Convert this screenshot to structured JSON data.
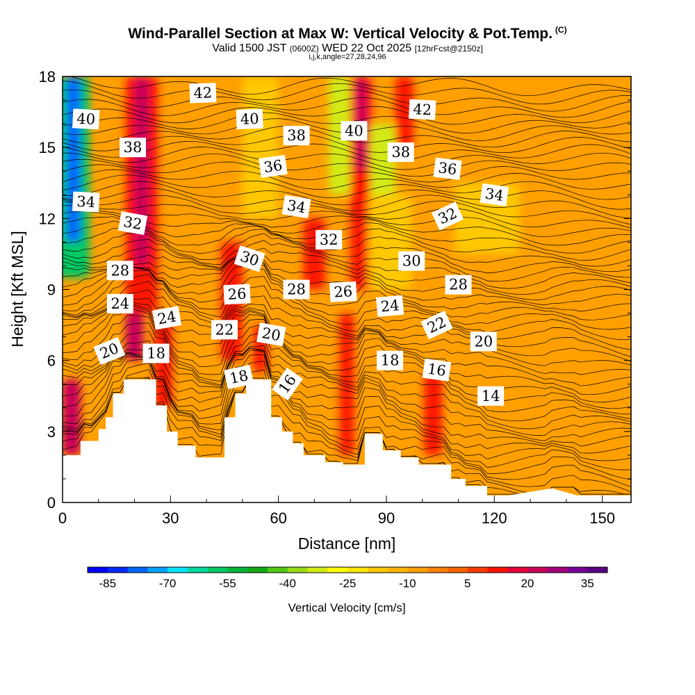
{
  "header": {
    "title": "Wind-Parallel Section at Max W: Vertical Velocity & Pot.Temp.",
    "title_tag": "(C)",
    "subtitle_a": "Valid 1500 JST ",
    "subtitle_b": "(0600Z)",
    "subtitle_c": " WED 22 Oct 2025 ",
    "subtitle_d": "[12hrFcst@2150z]",
    "subtitle2": "i,j,k,angle=27,28,24,96"
  },
  "colors": {
    "background_fill": "#ff9f00",
    "terrain": "#ffffff",
    "contour": "#000000"
  },
  "chart_data": {
    "type": "heatmap",
    "title": "Wind-Parallel Section at Max W: Vertical Velocity & Pot.Temp.",
    "xlabel": "Distance [nm]",
    "ylabel": "Height [Kft MSL]",
    "xlim": [
      0,
      158
    ],
    "ylim": [
      0,
      18
    ],
    "x_ticks": [
      "0",
      "30",
      "60",
      "90",
      "120",
      "150"
    ],
    "x_tick_values": [
      0,
      30,
      60,
      90,
      120,
      150
    ],
    "y_ticks": [
      "0",
      "3",
      "6",
      "9",
      "12",
      "15",
      "18"
    ],
    "y_tick_values": [
      0,
      3,
      6,
      9,
      12,
      15,
      18
    ],
    "colorbar": {
      "label": "Vertical Velocity [cm/s]",
      "tick_labels": [
        "-85",
        "-70",
        "-55",
        "-40",
        "-25",
        "-10",
        "5",
        "20",
        "35"
      ],
      "tick_values": [
        -85,
        -70,
        -55,
        -40,
        -25,
        -10,
        5,
        20,
        35
      ],
      "range": [
        -90,
        40
      ],
      "colors": [
        "#0000ff",
        "#0028ff",
        "#0064ff",
        "#00a0ff",
        "#00e4ff",
        "#00d8a0",
        "#00c864",
        "#00b43c",
        "#14aa14",
        "#50c814",
        "#96dc14",
        "#d2eb14",
        "#ffff00",
        "#ffe600",
        "#ffc800",
        "#ffb400",
        "#ff9f00",
        "#ff8200",
        "#ff6400",
        "#ff3c00",
        "#ff1400",
        "#e6003c",
        "#c8005a",
        "#a00078",
        "#780096",
        "#5a0082"
      ]
    },
    "terrain_profile": {
      "x": [
        0,
        5,
        5,
        10,
        10,
        12,
        12,
        14,
        14,
        17,
        17,
        26,
        26,
        29,
        29,
        32,
        32,
        37,
        37,
        45,
        45,
        48,
        48,
        51,
        51,
        58,
        58,
        61,
        61,
        64,
        64,
        67,
        67,
        73,
        73,
        78,
        78,
        84,
        84,
        89,
        89,
        94,
        94,
        99,
        99,
        108,
        108,
        112,
        112,
        118,
        118,
        124,
        124,
        136,
        136,
        143,
        143,
        158
      ],
      "y": [
        2.0,
        2.0,
        2.6,
        2.6,
        3.1,
        3.1,
        3.6,
        3.6,
        4.6,
        4.6,
        5.2,
        5.2,
        4.1,
        4.1,
        3.0,
        3.0,
        2.4,
        2.4,
        1.9,
        1.9,
        3.6,
        3.6,
        4.6,
        4.6,
        5.2,
        5.2,
        3.6,
        3.6,
        3.0,
        3.0,
        2.5,
        2.5,
        2.0,
        2.0,
        1.7,
        1.7,
        1.6,
        1.6,
        2.9,
        2.9,
        2.2,
        2.2,
        1.9,
        1.9,
        1.6,
        1.6,
        1.0,
        1.0,
        0.7,
        0.7,
        0.3,
        0.3,
        0.3,
        0.6,
        0.6,
        0.3,
        0.3,
        0.3
      ]
    },
    "w_field": [
      {
        "x": 3,
        "y0": 9.5,
        "y1": 18,
        "w": 9,
        "value": -60
      },
      {
        "x": 3,
        "y0": 11,
        "y1": 18,
        "w": 4,
        "value": -80
      },
      {
        "x": 2.5,
        "y0": 2,
        "y1": 5.2,
        "w": 5,
        "value": 20
      },
      {
        "x": 22,
        "y0": 8,
        "y1": 18,
        "w": 9,
        "value": 12
      },
      {
        "x": 22,
        "y0": 10,
        "y1": 18,
        "w": 4,
        "value": 20
      },
      {
        "x": 20,
        "y0": 6,
        "y1": 8,
        "w": 5,
        "value": 20
      },
      {
        "x": 28,
        "y0": 4,
        "y1": 8,
        "w": 5,
        "value": 12
      },
      {
        "x": 47,
        "y0": 6,
        "y1": 11,
        "w": 6,
        "value": 12
      },
      {
        "x": 55,
        "y0": 12,
        "y1": 18,
        "w": 10,
        "value": -18
      },
      {
        "x": 55,
        "y0": 5.5,
        "y1": 7.5,
        "w": 4,
        "value": 12
      },
      {
        "x": 70,
        "y0": 9,
        "y1": 12,
        "w": 6,
        "value": 12
      },
      {
        "x": 77,
        "y0": 13,
        "y1": 18,
        "w": 6,
        "value": -32
      },
      {
        "x": 79,
        "y0": 2,
        "y1": 8,
        "w": 4,
        "value": 12
      },
      {
        "x": 83,
        "y0": 9,
        "y1": 18,
        "w": 6,
        "value": 12
      },
      {
        "x": 83,
        "y0": 14,
        "y1": 18,
        "w": 3,
        "value": 20
      },
      {
        "x": 89,
        "y0": 12,
        "y1": 16,
        "w": 7,
        "value": -32
      },
      {
        "x": 91,
        "y0": 9,
        "y1": 13,
        "w": 12,
        "value": -18
      },
      {
        "x": 95,
        "y0": 15,
        "y1": 18,
        "w": 5,
        "value": 12
      },
      {
        "x": 103,
        "y0": 2,
        "y1": 5.5,
        "w": 5,
        "value": 12
      },
      {
        "x": 118,
        "y0": 10.5,
        "y1": 13.5,
        "w": 18,
        "value": -18
      },
      {
        "x": 112,
        "y0": 2,
        "y1": 6,
        "w": 5,
        "value": -6
      },
      {
        "x": 156,
        "y0": 5,
        "y1": 10,
        "w": 4,
        "value": -6
      }
    ],
    "contour_labels": [
      {
        "text": "40",
        "x": 6.5,
        "y": 16.2,
        "angle": 3
      },
      {
        "text": "42",
        "x": 39,
        "y": 17.3,
        "angle": -2
      },
      {
        "text": "40",
        "x": 52,
        "y": 16.2,
        "angle": -2
      },
      {
        "text": "38",
        "x": 65,
        "y": 15.5,
        "angle": 0
      },
      {
        "text": "40",
        "x": 81,
        "y": 15.7,
        "angle": 0
      },
      {
        "text": "42",
        "x": 100,
        "y": 16.6,
        "angle": 3
      },
      {
        "text": "38",
        "x": 19.5,
        "y": 15.0,
        "angle": 0
      },
      {
        "text": "38",
        "x": 94,
        "y": 14.8,
        "angle": 0
      },
      {
        "text": "36",
        "x": 58.5,
        "y": 14.2,
        "angle": -8
      },
      {
        "text": "36",
        "x": 107,
        "y": 14.1,
        "angle": 7
      },
      {
        "text": "34",
        "x": 6.5,
        "y": 12.7,
        "angle": 3
      },
      {
        "text": "34",
        "x": 65,
        "y": 12.5,
        "angle": 9
      },
      {
        "text": "34",
        "x": 120,
        "y": 13.0,
        "angle": 8
      },
      {
        "text": "32",
        "x": 19.5,
        "y": 11.8,
        "angle": 10
      },
      {
        "text": "32",
        "x": 107,
        "y": 12.1,
        "angle": -25
      },
      {
        "text": "32",
        "x": 74,
        "y": 11.1,
        "angle": 0
      },
      {
        "text": "30",
        "x": 52,
        "y": 10.3,
        "angle": 18
      },
      {
        "text": "30",
        "x": 97,
        "y": 10.2,
        "angle": 0
      },
      {
        "text": "28",
        "x": 16,
        "y": 9.8,
        "angle": 0
      },
      {
        "text": "28",
        "x": 65,
        "y": 9.0,
        "angle": 0
      },
      {
        "text": "28",
        "x": 110,
        "y": 9.2,
        "angle": 0
      },
      {
        "text": "26",
        "x": 48.5,
        "y": 8.8,
        "angle": -3
      },
      {
        "text": "26",
        "x": 78,
        "y": 8.9,
        "angle": -3
      },
      {
        "text": "24",
        "x": 16,
        "y": 8.4,
        "angle": 0
      },
      {
        "text": "24",
        "x": 29,
        "y": 7.8,
        "angle": -10
      },
      {
        "text": "24",
        "x": 91,
        "y": 8.3,
        "angle": -5
      },
      {
        "text": "22",
        "x": 45,
        "y": 7.3,
        "angle": 0
      },
      {
        "text": "22",
        "x": 104,
        "y": 7.5,
        "angle": -25
      },
      {
        "text": "20",
        "x": 13,
        "y": 6.4,
        "angle": -22
      },
      {
        "text": "20",
        "x": 58,
        "y": 7.1,
        "angle": 10
      },
      {
        "text": "20",
        "x": 117,
        "y": 6.8,
        "angle": 0
      },
      {
        "text": "18",
        "x": 26,
        "y": 6.3,
        "angle": 0
      },
      {
        "text": "18",
        "x": 91,
        "y": 6.0,
        "angle": 0
      },
      {
        "text": "18",
        "x": 49,
        "y": 5.3,
        "angle": -12
      },
      {
        "text": "16",
        "x": 62.5,
        "y": 5.0,
        "angle": -55
      },
      {
        "text": "16",
        "x": 104,
        "y": 5.6,
        "angle": 8
      },
      {
        "text": "14",
        "x": 119,
        "y": 4.5,
        "angle": 0
      }
    ]
  }
}
